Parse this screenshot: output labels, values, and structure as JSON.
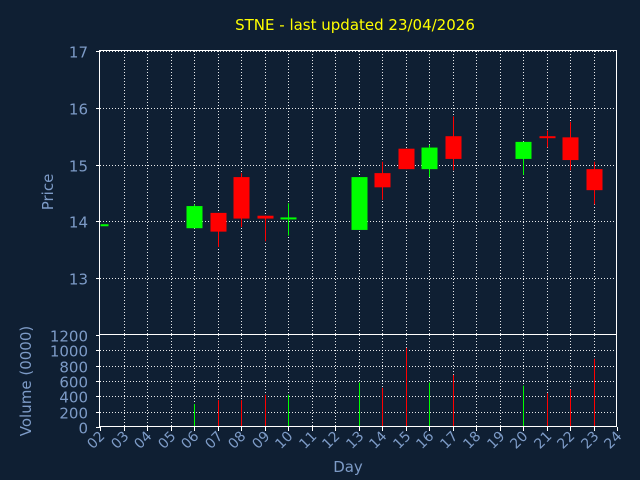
{
  "chart_data": {
    "type": "candlestick",
    "title": "STNE - last updated 23/04/2026",
    "xlabel": "Day",
    "price_axis": {
      "label": "Price",
      "ylim": [
        12.0,
        17.0
      ],
      "ticks": [
        13,
        14,
        15,
        16,
        17
      ],
      "grid": true
    },
    "volume_axis": {
      "label": "Volume (0000)",
      "ylim": [
        0,
        1200
      ],
      "ticks": [
        0,
        200,
        400,
        600,
        800,
        1000,
        1200
      ],
      "grid": true
    },
    "x_ticks": [
      "02",
      "03",
      "04",
      "05",
      "06",
      "07",
      "08",
      "09",
      "10",
      "11",
      "12",
      "13",
      "14",
      "15",
      "16",
      "17",
      "18",
      "19",
      "20",
      "21",
      "22",
      "23",
      "24"
    ],
    "colors": {
      "up": "#00ff00",
      "down": "#ff0000",
      "background": "#0f1f33",
      "title": "#ffff00",
      "axis_text": "#7d9bc7",
      "frame": "#ffffff"
    },
    "candles": [
      {
        "day": 2,
        "open": 13.95,
        "high": 13.95,
        "low": 13.95,
        "close": 13.95,
        "volume": 0
      },
      {
        "day": 6,
        "open": 13.88,
        "high": 14.3,
        "low": 13.88,
        "close": 14.27,
        "volume": 300
      },
      {
        "day": 7,
        "open": 14.15,
        "high": 14.15,
        "low": 13.55,
        "close": 13.82,
        "volume": 350
      },
      {
        "day": 8,
        "open": 14.78,
        "high": 14.85,
        "low": 13.9,
        "close": 14.05,
        "volume": 350
      },
      {
        "day": 9,
        "open": 14.1,
        "high": 14.1,
        "low": 13.65,
        "close": 14.05,
        "volume": 420
      },
      {
        "day": 10,
        "open": 14.05,
        "high": 14.32,
        "low": 13.75,
        "close": 14.07,
        "volume": 420
      },
      {
        "day": 13,
        "open": 13.85,
        "high": 14.78,
        "low": 13.85,
        "close": 14.78,
        "volume": 580
      },
      {
        "day": 14,
        "open": 14.85,
        "high": 15.05,
        "low": 14.38,
        "close": 14.6,
        "volume": 510
      },
      {
        "day": 15,
        "open": 15.28,
        "high": 15.28,
        "low": 14.92,
        "close": 14.92,
        "volume": 1030
      },
      {
        "day": 16,
        "open": 14.92,
        "high": 15.35,
        "low": 14.78,
        "close": 15.3,
        "volume": 580
      },
      {
        "day": 17,
        "open": 15.5,
        "high": 15.85,
        "low": 14.9,
        "close": 15.1,
        "volume": 680
      },
      {
        "day": 20,
        "open": 15.1,
        "high": 15.4,
        "low": 14.82,
        "close": 15.4,
        "volume": 540
      },
      {
        "day": 21,
        "open": 15.5,
        "high": 15.6,
        "low": 15.3,
        "close": 15.47,
        "volume": 440
      },
      {
        "day": 22,
        "open": 15.48,
        "high": 15.75,
        "low": 14.9,
        "close": 15.08,
        "volume": 490
      },
      {
        "day": 23,
        "open": 14.92,
        "high": 15.05,
        "low": 14.3,
        "close": 14.55,
        "volume": 890
      }
    ]
  }
}
